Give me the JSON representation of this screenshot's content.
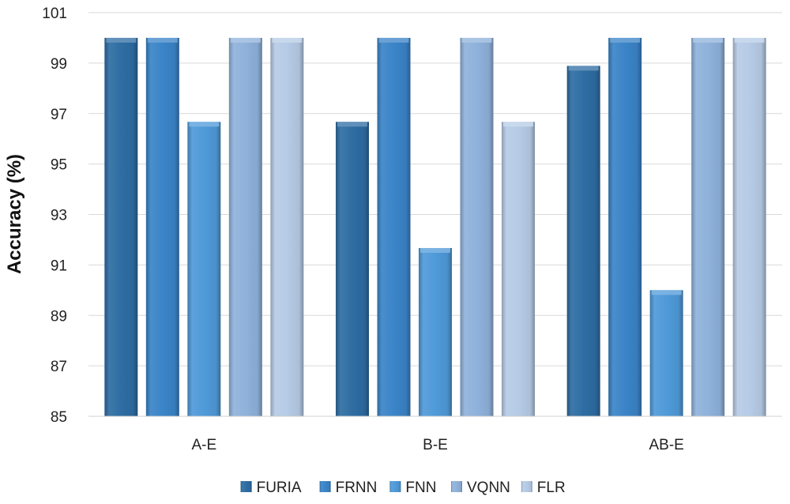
{
  "chart_data": {
    "type": "bar",
    "title": "",
    "xlabel": "",
    "ylabel": "Accuracy (%)",
    "ylim": [
      85,
      101
    ],
    "yticks": [
      85,
      87,
      89,
      91,
      93,
      95,
      97,
      99,
      101
    ],
    "categories": [
      "A-E",
      "B-E",
      "AB-E"
    ],
    "series": [
      {
        "name": "FURIA",
        "values": [
          100,
          96.67,
          98.89
        ],
        "color": "#2e6da3"
      },
      {
        "name": "FRNN",
        "values": [
          100,
          100,
          100
        ],
        "color": "#3a84c8"
      },
      {
        "name": "FNN",
        "values": [
          96.67,
          91.67,
          90
        ],
        "color": "#4f9ad9"
      },
      {
        "name": "VQNN",
        "values": [
          100,
          100,
          100
        ],
        "color": "#8fb2db"
      },
      {
        "name": "FLR",
        "values": [
          100,
          96.67,
          100
        ],
        "color": "#b6cbe6"
      }
    ],
    "grid": true,
    "legend_position": "bottom"
  }
}
